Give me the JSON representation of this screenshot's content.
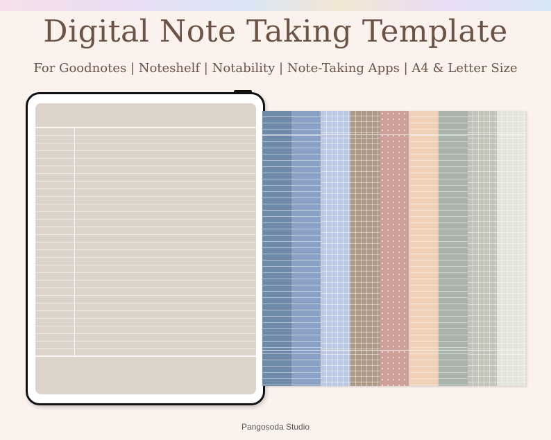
{
  "header": {
    "title": "Digital Note Taking Template",
    "subtitle": "For Goodnotes | Noteshelf | Notability | Note-Taking Apps | A4 & Letter Size"
  },
  "footer": {
    "brand": "Pangosoda Studio"
  },
  "colors": {
    "background": "#fbf2ee",
    "title": "#6b5446",
    "tablet_screen": "#dcd4ca"
  },
  "pages": [
    {
      "name": "steel-blue-lined",
      "color": "#6f8aa8",
      "pattern": "lined"
    },
    {
      "name": "blue-lined",
      "color": "#8aa0c4",
      "pattern": "lined"
    },
    {
      "name": "lavender-grid",
      "color": "#bac8e3",
      "pattern": "grid"
    },
    {
      "name": "taupe-grid",
      "color": "#ad9a88",
      "pattern": "grid"
    },
    {
      "name": "rose-dotted",
      "color": "#cf9f99",
      "pattern": "dots"
    },
    {
      "name": "peach-lined",
      "color": "#efd2b7",
      "pattern": "lined"
    },
    {
      "name": "sage-lined",
      "color": "#a9b5ab",
      "pattern": "lined"
    },
    {
      "name": "grey-green-grid",
      "color": "#c0c3b6",
      "pattern": "grid"
    },
    {
      "name": "ivory-grid",
      "color": "#e6e5dc",
      "pattern": "grid"
    }
  ]
}
